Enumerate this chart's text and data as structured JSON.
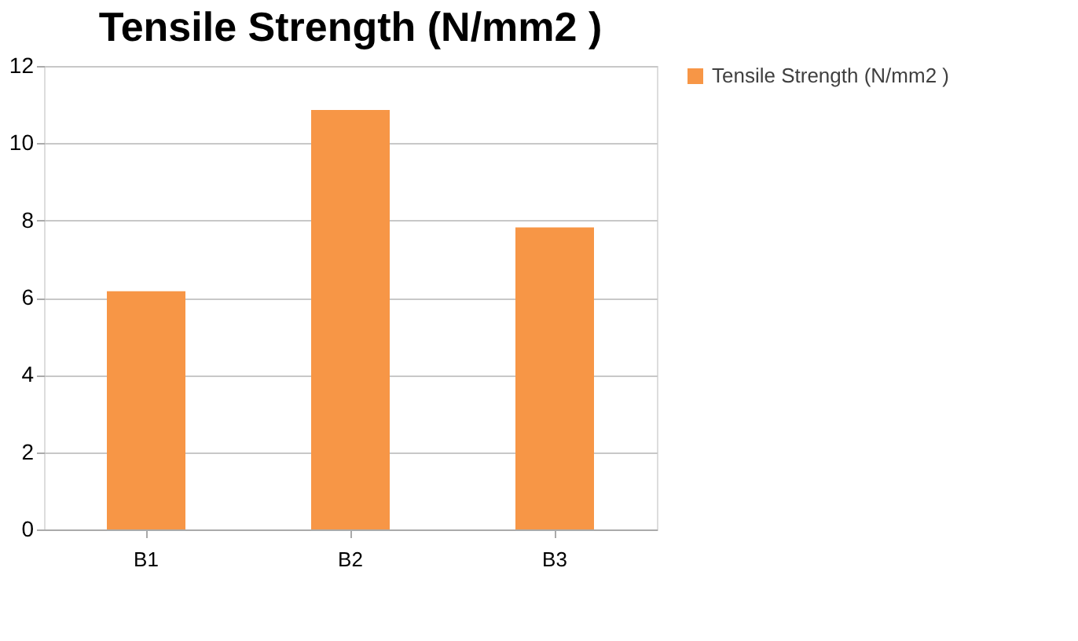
{
  "chart_data": {
    "type": "bar",
    "title": "Tensile Strength (N/mm2 )",
    "categories": [
      "B1",
      "B2",
      "B3"
    ],
    "series": [
      {
        "name": "Tensile Strength (N/mm2 )",
        "color": "#f79646",
        "values": [
          6.17,
          10.86,
          7.82
        ]
      }
    ],
    "ylim": [
      0,
      12
    ],
    "yticks": [
      0,
      2,
      4,
      6,
      8,
      10,
      12
    ],
    "grid": "y",
    "legend": "right"
  }
}
